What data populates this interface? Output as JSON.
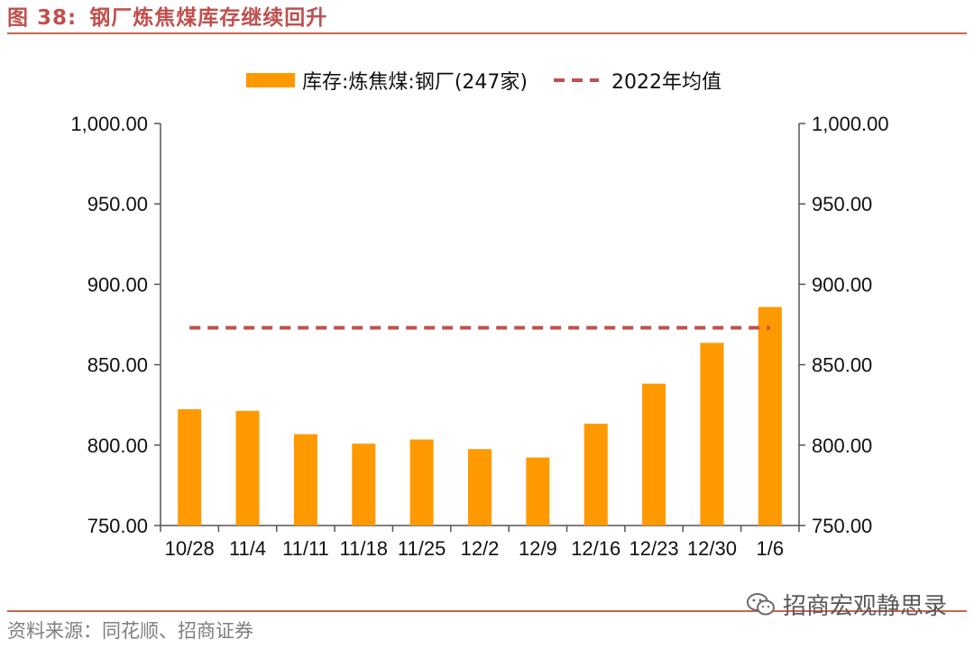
{
  "header": {
    "figure_label": "图 38:",
    "title": "钢厂炼焦煤库存继续回升"
  },
  "source": "资料来源：同花顺、招商证券",
  "watermark": "招商宏观静思录",
  "chart_data": {
    "type": "bar",
    "categories": [
      "10/28",
      "11/4",
      "11/11",
      "11/18",
      "11/25",
      "12/2",
      "12/9",
      "12/16",
      "12/23",
      "12/30",
      "1/6"
    ],
    "series": [
      {
        "name": "库存:炼焦煤:钢厂(247家)",
        "type": "bar",
        "color": "#ff9900",
        "values": [
          822.3,
          821.3,
          806.8,
          800.9,
          803.5,
          797.5,
          792.3,
          813.3,
          838.2,
          863.6,
          885.9
        ]
      },
      {
        "name": "2022年均值",
        "type": "dashed-line",
        "color": "#c0504d",
        "values": [
          873,
          873,
          873,
          873,
          873,
          873,
          873,
          873,
          873,
          873,
          873
        ]
      }
    ],
    "ylim": [
      750,
      1000
    ],
    "yticks": [
      "750.00",
      "800.00",
      "850.00",
      "900.00",
      "950.00",
      "1,000.00"
    ],
    "ytick_values": [
      750,
      800,
      850,
      900,
      950,
      1000
    ],
    "y2ticks": [
      "750.00",
      "800.00",
      "850.00",
      "900.00",
      "950.00",
      "1,000.00"
    ],
    "legend_position": "top-center",
    "grid": false
  }
}
